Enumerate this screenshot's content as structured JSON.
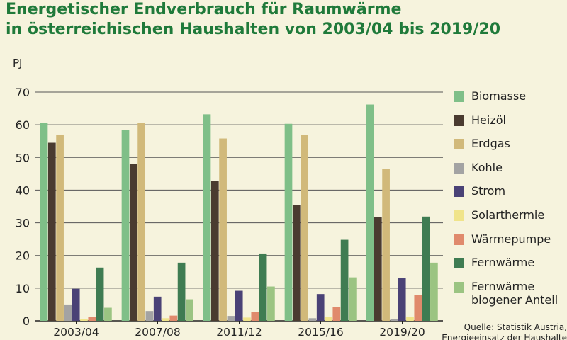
{
  "title": {
    "line1": "Energetischer Endverbrauch für Raumwärme",
    "line2": "in österreichischen Haushalten von 2003/04 bis 2019/20"
  },
  "source": {
    "line1": "Quelle: Statistik Austria,",
    "line2": "Energieeinsatz der Haushalte"
  },
  "chart_data": {
    "type": "bar",
    "ylabel": "PJ",
    "ylim": [
      0,
      70
    ],
    "yticks": [
      0,
      10,
      20,
      30,
      40,
      50,
      60,
      70
    ],
    "grid": true,
    "legend_position": "right",
    "categories": [
      "2003/04",
      "2007/08",
      "2011/12",
      "2015/16",
      "2019/20"
    ],
    "series": [
      {
        "name": "Biomasse",
        "color": "#7fbf88",
        "values": [
          60.5,
          58.5,
          63.2,
          60.3,
          66.2
        ]
      },
      {
        "name": "Heizöl",
        "color": "#4a3b30",
        "values": [
          54.5,
          48.0,
          42.8,
          35.5,
          31.8
        ]
      },
      {
        "name": "Erdgas",
        "color": "#d1b97a",
        "values": [
          57.0,
          60.5,
          55.8,
          56.8,
          46.5
        ]
      },
      {
        "name": "Kohle",
        "color": "#a3a3a3",
        "values": [
          5.0,
          3.0,
          1.5,
          0.8,
          0.5
        ]
      },
      {
        "name": "Strom",
        "color": "#4a4276",
        "values": [
          9.8,
          7.4,
          9.2,
          8.2,
          13.0
        ]
      },
      {
        "name": "Solarthermie",
        "color": "#f0e48a",
        "values": [
          0.6,
          0.8,
          1.0,
          1.2,
          1.3
        ]
      },
      {
        "name": "Wärmepumpe",
        "color": "#e08a6c",
        "values": [
          1.1,
          1.6,
          2.8,
          4.3,
          8.0
        ]
      },
      {
        "name": "Fernwärme",
        "color": "#3f7c52",
        "values": [
          16.3,
          17.8,
          20.6,
          24.8,
          31.9
        ]
      },
      {
        "name": "Fernwärme biogener Anteil",
        "legend_lines": [
          "Fernwärme",
          "biogener Anteil"
        ],
        "color": "#9bc482",
        "values": [
          4.0,
          6.6,
          10.5,
          13.3,
          17.8
        ]
      }
    ]
  }
}
